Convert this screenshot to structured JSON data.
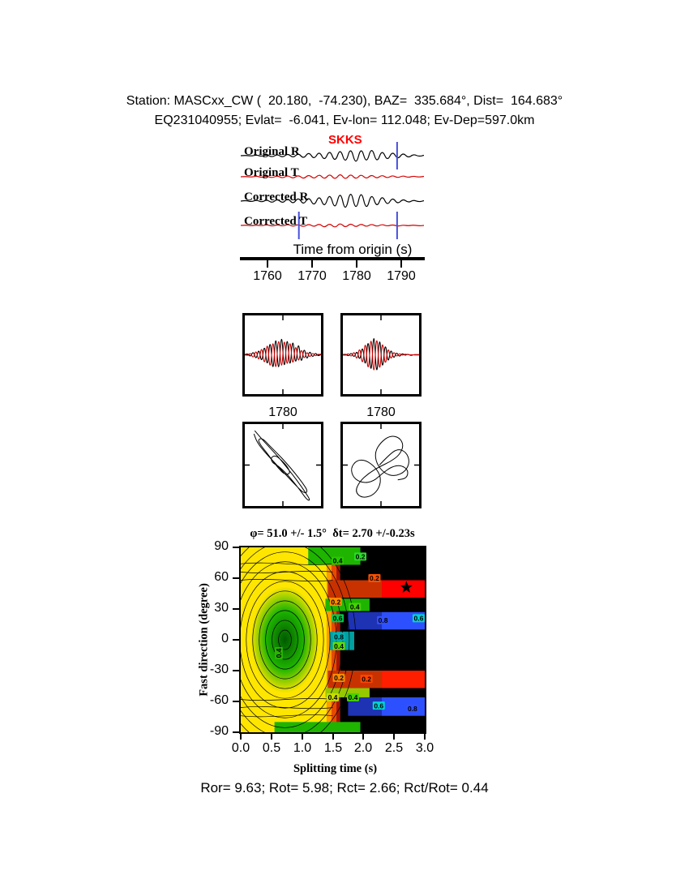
{
  "header": {
    "line1": "Station: MASCxx_CW (  20.180,  -74.230), BAZ=  335.684°, Dist=  164.683°",
    "line2": "EQ231040955; Evlat=  -6.041, Ev-lon= 112.048; Ev-Dep=597.0km"
  },
  "seismograms": {
    "phase_label": "SKKS",
    "phase_color": "#ff0000",
    "trace_labels": [
      "Original R",
      "Original T",
      "Corrected R",
      "Corrected T"
    ],
    "axis_label": "Time from origin (s)",
    "xticks": [
      "1760",
      "1770",
      "1780",
      "1790"
    ],
    "marker_color": "#4650dc",
    "trace_colors": {
      "radial": "#000000",
      "transverse": "#d40000"
    }
  },
  "window_panels": {
    "left_xtick": "1780",
    "right_xtick": "1780"
  },
  "splitting_map": {
    "title": "φ= 51.0 +/- 1.5°  δt= 2.70 +/-0.23s",
    "xlabel": "Splitting time (s)",
    "ylabel": "Fast direction (degree)",
    "xticks": [
      "0.0",
      "0.5",
      "1.0",
      "1.5",
      "2.0",
      "2.5",
      "3.0"
    ],
    "yticks": [
      "90",
      "60",
      "30",
      "0",
      "-30",
      "-60",
      "-90"
    ]
  },
  "footer": {
    "stats": "Ror= 9.63; Rot= 5.98; Rct= 2.66; Rct/Rot= 0.44"
  },
  "chart_data": [
    {
      "name": "seismogram",
      "type": "line",
      "xlabel": "Time from origin (s)",
      "x_range": [
        1754,
        1795
      ],
      "xticks": [
        1760,
        1770,
        1780,
        1790
      ],
      "traces": [
        {
          "label": "Original R",
          "color": "#000000",
          "values": [
            0,
            0.5,
            -0.5,
            1,
            -1,
            1.5,
            -2,
            2,
            -2.5,
            3,
            -3,
            3.5,
            -4,
            5,
            -5,
            6,
            -7,
            8,
            -9,
            10,
            -11,
            12,
            -13,
            12,
            -11,
            12,
            -10,
            8,
            -7,
            6,
            -5,
            4,
            -3,
            2,
            -1,
            0.5
          ]
        },
        {
          "label": "Original T",
          "color": "#d40000",
          "values": [
            0,
            0.5,
            -0.5,
            1,
            -1,
            1,
            -1.5,
            1.5,
            -2,
            2,
            -2.5,
            2.5,
            -3,
            3,
            -3,
            3.5,
            -3.5,
            4,
            -4,
            4.5,
            -4,
            4,
            -3.5,
            3.5,
            -3,
            3,
            -2.5,
            2.5,
            -2,
            2,
            -1.5,
            1.5,
            -1,
            1,
            -0.5,
            0.5
          ]
        },
        {
          "label": "Corrected R",
          "color": "#000000",
          "values": [
            0,
            1,
            -1,
            1.5,
            -1.5,
            2,
            -2.5,
            3,
            -3,
            4,
            -4,
            5,
            -5,
            6,
            -7,
            8,
            -9,
            11,
            -12,
            14,
            -15,
            16,
            -14,
            15,
            -13,
            11,
            -9,
            8,
            -6,
            5,
            -4,
            3,
            -2,
            1.5,
            -1,
            0.5
          ]
        },
        {
          "label": "Corrected T",
          "color": "#d40000",
          "values": [
            0,
            0.5,
            -0.5,
            0.5,
            -0.5,
            1,
            -1,
            1,
            -1,
            1.5,
            -1.5,
            1.5,
            -2,
            2,
            -2,
            2.5,
            -3,
            3,
            -3.5,
            3.5,
            -3,
            3,
            -2.5,
            2.5,
            -2,
            2,
            -1.5,
            1.5,
            -1,
            1,
            -1,
            0.5,
            -0.5,
            0.5,
            -0.5,
            0
          ]
        }
      ],
      "window_markers": [
        {
          "trace": "Original R",
          "x": 1789
        },
        {
          "trace": "Corrected T",
          "x": 1767
        },
        {
          "trace": "Corrected T",
          "x": 1789
        }
      ]
    },
    {
      "name": "window-left",
      "type": "line",
      "xtick": 1780,
      "traces": [
        {
          "color": "#000000",
          "values": [
            0,
            2,
            -3,
            5,
            -7,
            9,
            -12,
            16,
            -20,
            25,
            -29,
            33,
            -31,
            35,
            -27,
            30,
            -23,
            26,
            -18,
            20,
            -14,
            11,
            -8,
            6,
            -4,
            3,
            -2,
            1
          ]
        },
        {
          "color": "#d40000",
          "values": [
            1,
            -2,
            3,
            -5,
            7,
            -10,
            13,
            -17,
            21,
            -25,
            27,
            -29,
            31,
            -27,
            29,
            -23,
            25,
            -19,
            17,
            -13,
            10,
            -7,
            5,
            -4,
            3,
            -2,
            1,
            0
          ]
        }
      ]
    },
    {
      "name": "window-right",
      "type": "line",
      "xtick": 1780,
      "traces": [
        {
          "color": "#000000",
          "values": [
            0,
            1,
            -2,
            3,
            -4,
            6,
            -9,
            14,
            -20,
            27,
            -33,
            38,
            -36,
            31,
            -25,
            19,
            -13,
            9,
            -6,
            4,
            -3,
            2,
            -1,
            1,
            -1,
            0,
            0,
            0
          ]
        },
        {
          "color": "#d40000",
          "values": [
            0,
            -1,
            2,
            -3,
            5,
            -8,
            12,
            -17,
            23,
            -29,
            33,
            -36,
            34,
            -30,
            24,
            -18,
            12,
            -8,
            5,
            -3,
            2,
            -1,
            1,
            0,
            0,
            0,
            0,
            0
          ]
        }
      ]
    },
    {
      "name": "particle-motion-left",
      "type": "scatter",
      "path": [
        [
          0.13,
          0.08
        ],
        [
          0.22,
          0.18
        ],
        [
          0.32,
          0.28
        ],
        [
          0.44,
          0.4
        ],
        [
          0.56,
          0.54
        ],
        [
          0.68,
          0.68
        ],
        [
          0.8,
          0.84
        ],
        [
          0.86,
          0.93
        ],
        [
          0.82,
          0.93
        ],
        [
          0.72,
          0.8
        ],
        [
          0.6,
          0.66
        ],
        [
          0.5,
          0.56
        ],
        [
          0.42,
          0.5
        ],
        [
          0.36,
          0.47
        ],
        [
          0.34,
          0.41
        ],
        [
          0.4,
          0.38
        ],
        [
          0.48,
          0.44
        ],
        [
          0.56,
          0.52
        ],
        [
          0.6,
          0.6
        ],
        [
          0.53,
          0.62
        ],
        [
          0.44,
          0.54
        ],
        [
          0.36,
          0.44
        ],
        [
          0.28,
          0.34
        ],
        [
          0.21,
          0.26
        ],
        [
          0.17,
          0.19
        ],
        [
          0.23,
          0.17
        ],
        [
          0.32,
          0.26
        ],
        [
          0.43,
          0.36
        ],
        [
          0.54,
          0.47
        ],
        [
          0.66,
          0.6
        ],
        [
          0.76,
          0.72
        ],
        [
          0.83,
          0.82
        ],
        [
          0.78,
          0.85
        ],
        [
          0.66,
          0.74
        ],
        [
          0.52,
          0.6
        ],
        [
          0.38,
          0.46
        ],
        [
          0.26,
          0.34
        ],
        [
          0.16,
          0.22
        ],
        [
          0.12,
          0.12
        ]
      ]
    },
    {
      "name": "particle-motion-right",
      "type": "scatter",
      "path": [
        [
          0.48,
          0.5
        ],
        [
          0.6,
          0.38
        ],
        [
          0.72,
          0.3
        ],
        [
          0.83,
          0.34
        ],
        [
          0.88,
          0.46
        ],
        [
          0.82,
          0.58
        ],
        [
          0.68,
          0.64
        ],
        [
          0.54,
          0.6
        ],
        [
          0.44,
          0.48
        ],
        [
          0.42,
          0.34
        ],
        [
          0.5,
          0.22
        ],
        [
          0.62,
          0.14
        ],
        [
          0.74,
          0.16
        ],
        [
          0.8,
          0.26
        ],
        [
          0.74,
          0.38
        ],
        [
          0.62,
          0.46
        ],
        [
          0.48,
          0.52
        ],
        [
          0.34,
          0.6
        ],
        [
          0.22,
          0.7
        ],
        [
          0.16,
          0.82
        ],
        [
          0.24,
          0.9
        ],
        [
          0.38,
          0.88
        ],
        [
          0.48,
          0.78
        ],
        [
          0.5,
          0.64
        ],
        [
          0.42,
          0.52
        ],
        [
          0.3,
          0.44
        ],
        [
          0.18,
          0.44
        ],
        [
          0.1,
          0.54
        ],
        [
          0.14,
          0.66
        ],
        [
          0.26,
          0.72
        ],
        [
          0.4,
          0.7
        ],
        [
          0.52,
          0.6
        ],
        [
          0.64,
          0.52
        ],
        [
          0.76,
          0.5
        ],
        [
          0.86,
          0.56
        ],
        [
          0.84,
          0.66
        ],
        [
          0.72,
          0.68
        ]
      ]
    },
    {
      "name": "splitting-misfit",
      "type": "heatmap",
      "title": "φ= 51.0 +/- 1.5°  δt= 2.70 +/-0.23s",
      "xlabel": "Splitting time (s)",
      "ylabel": "Fast direction (degree)",
      "x_range": [
        0,
        3
      ],
      "y_range": [
        -90,
        90
      ],
      "best": {
        "dt": 2.7,
        "dt_err": 0.23,
        "phi": 51.0,
        "phi_err": 1.5
      },
      "contour_levels": [
        0.2,
        0.4,
        0.6,
        0.8
      ],
      "star": {
        "t": 2.7,
        "phi": 51
      },
      "labels": [
        {
          "t": 1.58,
          "phi": 77,
          "label": "0.4",
          "bg": "#28c800"
        },
        {
          "t": 1.95,
          "phi": 81,
          "label": "0.2",
          "bg": "#28dc28"
        },
        {
          "t": 2.18,
          "phi": 60,
          "label": "0.2",
          "bg": "#ff5000"
        },
        {
          "t": 1.55,
          "phi": 37,
          "label": "0.2",
          "bg": "#ff8c00"
        },
        {
          "t": 1.86,
          "phi": 32,
          "label": "0.4",
          "bg": "#46d200"
        },
        {
          "t": 1.58,
          "phi": 21,
          "label": "0.6",
          "bg": "#00c846"
        },
        {
          "t": 2.32,
          "phi": 19,
          "label": "0.8",
          "bg": "#3250ff"
        },
        {
          "t": 2.9,
          "phi": 21,
          "label": "0.6",
          "bg": "#00d2d2"
        },
        {
          "t": 1.6,
          "phi": 3,
          "label": "0.8",
          "bg": "#00b4b4"
        },
        {
          "t": 1.6,
          "phi": -6,
          "label": "0.4",
          "bg": "#64dc00"
        },
        {
          "t": 1.6,
          "phi": -37,
          "label": "0.2",
          "bg": "#ff8c00"
        },
        {
          "t": 2.05,
          "phi": -38,
          "label": "0.2",
          "bg": "#ff4600"
        },
        {
          "t": 1.5,
          "phi": -56,
          "label": "0.4",
          "bg": "#c8dc00"
        },
        {
          "t": 1.83,
          "phi": -56,
          "label": "0.4",
          "bg": "#46d200"
        },
        {
          "t": 2.25,
          "phi": -64,
          "label": "0.6",
          "bg": "#00d2d2"
        },
        {
          "t": 2.8,
          "phi": -67,
          "label": "0.8",
          "bg": "#3250ff"
        },
        {
          "t": 0.62,
          "phi": -13,
          "label": "0.4",
          "bg": "#28b400",
          "rot": -90
        }
      ],
      "render": {
        "background": "#ffe600",
        "black_x0": 1.62,
        "green_blob": {
          "x": 0.72,
          "y": 0,
          "rx": 0.56,
          "ry": 52
        },
        "transition": [
          {
            "x0": 1.4,
            "x1": 1.48,
            "c": "#ff9b00"
          },
          {
            "x0": 1.48,
            "x1": 1.56,
            "c": "#e64b00"
          },
          {
            "x0": 1.56,
            "x1": 1.62,
            "c": "#a51400"
          }
        ],
        "bands": [
          {
            "phi0": 58,
            "phi1": 41,
            "x0": 1.42,
            "c0": "#c83200",
            "c1": "#ff0000"
          },
          {
            "phi0": 27,
            "phi1": 10,
            "x0": 1.75,
            "c0": "#1e32b4",
            "c1": "#2d50ff"
          },
          {
            "phi0": -30,
            "phi1": -47,
            "x0": 1.42,
            "c0": "#c83200",
            "c1": "#ff1e00"
          },
          {
            "phi0": -56,
            "phi1": -74,
            "x0": 1.75,
            "c0": "#1e32b4",
            "c1": "#2d50ff"
          }
        ],
        "green_strips": [
          {
            "phi0": 90,
            "phi1": 73,
            "x0": 1.1,
            "x1": 1.95,
            "c": "#1eb400"
          },
          {
            "phi0": 40,
            "phi1": 28,
            "x0": 1.38,
            "x1": 2.1,
            "c": "#1eb400"
          },
          {
            "phi0": 8,
            "phi1": -10,
            "x0": 1.45,
            "x1": 1.85,
            "c": "#00a0a0"
          },
          {
            "phi0": -47,
            "phi1": -56,
            "x0": 1.38,
            "x1": 2.1,
            "c": "#96c800"
          },
          {
            "phi0": -80,
            "phi1": -90,
            "x0": 0.55,
            "x1": 1.95,
            "c": "#1eb400"
          }
        ],
        "rings": {
          "cx": 0.72,
          "cy": 0,
          "n": 11,
          "drx": 0.105,
          "dry": 9.5
        },
        "yellow_phis": [
          74,
          66,
          58,
          -58,
          -66,
          -74
        ]
      }
    }
  ]
}
